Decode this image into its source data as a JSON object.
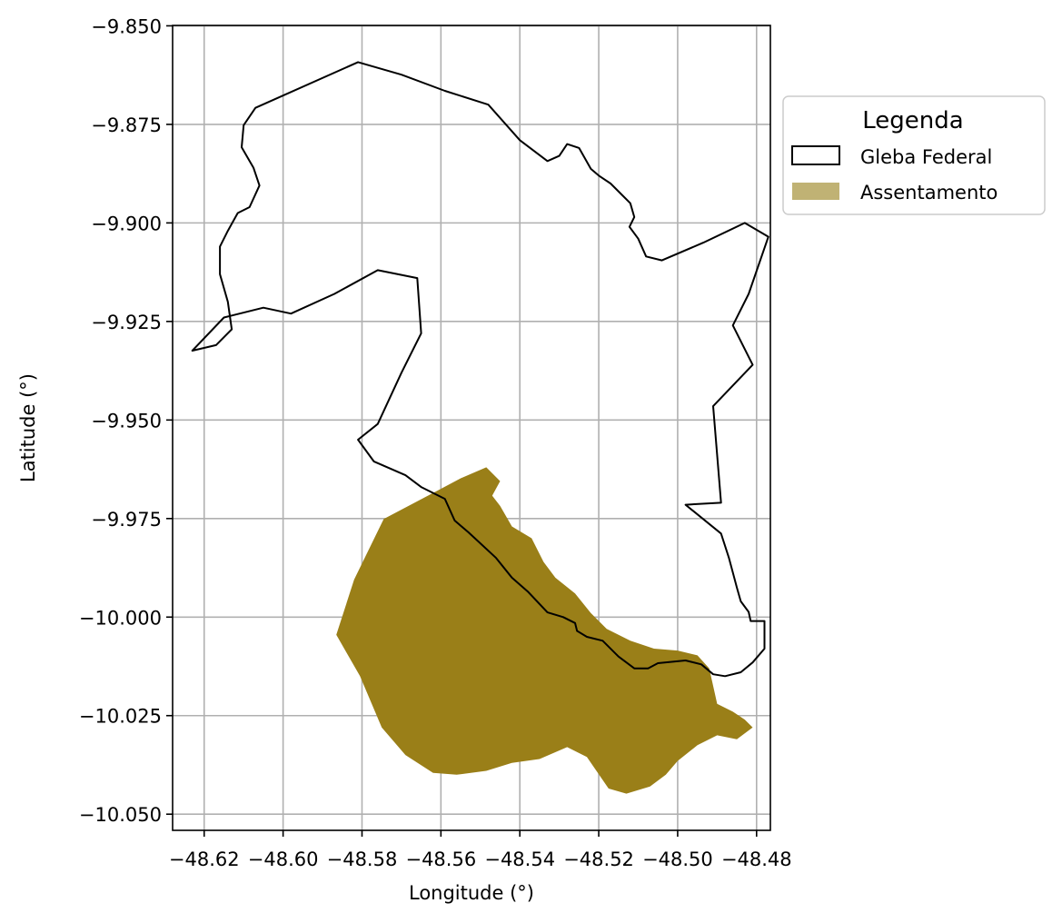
{
  "chart_data": {
    "type": "map",
    "xlabel": "Longitude (°)",
    "ylabel": "Latitude (°)",
    "xlim": [
      -48.628,
      -48.4765
    ],
    "ylim": [
      -10.0541,
      -9.8499
    ],
    "x_ticks": [
      -48.62,
      -48.6,
      -48.58,
      -48.56,
      -48.54,
      -48.52,
      -48.5,
      -48.48
    ],
    "x_tick_labels": [
      "−48.62",
      "−48.60",
      "−48.58",
      "−48.56",
      "−48.54",
      "−48.52",
      "−48.50",
      "−48.48"
    ],
    "y_ticks": [
      -9.85,
      -9.875,
      -9.9,
      -9.925,
      -9.95,
      -9.975,
      -10.0,
      -10.025,
      -10.05
    ],
    "y_tick_labels": [
      "−9.850",
      "−9.875",
      "−9.900",
      "−9.925",
      "−9.950",
      "−9.975",
      "−10.000",
      "−10.025",
      "−10.050"
    ],
    "grid": true,
    "legend": {
      "title": "Legenda",
      "placement": "outside-right-top",
      "entries": [
        {
          "label": "Gleba Federal",
          "style": "outline",
          "color": "#000000"
        },
        {
          "label": "Assentamento",
          "style": "fill",
          "color": "#c0b274"
        }
      ]
    },
    "layers": [
      {
        "name": "Gleba Federal",
        "style": "outline",
        "stroke": "#000000",
        "coordinates": [
          [
            -48.581,
            -9.8592
          ],
          [
            -48.57,
            -9.8624
          ],
          [
            -48.559,
            -9.8665
          ],
          [
            -48.548,
            -9.87
          ],
          [
            -48.54,
            -9.879
          ],
          [
            -48.533,
            -9.8843
          ],
          [
            -48.53,
            -9.883
          ],
          [
            -48.528,
            -9.88
          ],
          [
            -48.525,
            -9.881
          ],
          [
            -48.522,
            -9.8863
          ],
          [
            -48.52,
            -9.888
          ],
          [
            -48.517,
            -9.89
          ],
          [
            -48.514,
            -9.893
          ],
          [
            -48.512,
            -9.895
          ],
          [
            -48.511,
            -9.8985
          ],
          [
            -48.5122,
            -9.901
          ],
          [
            -48.51,
            -9.904
          ],
          [
            -48.508,
            -9.9085
          ],
          [
            -48.504,
            -9.9095
          ],
          [
            -48.4935,
            -9.905
          ],
          [
            -48.483,
            -9.9
          ],
          [
            -48.477,
            -9.9035
          ],
          [
            -48.482,
            -9.918
          ],
          [
            -48.486,
            -9.926
          ],
          [
            -48.481,
            -9.936
          ],
          [
            -48.491,
            -9.9465
          ],
          [
            -48.489,
            -9.971
          ],
          [
            -48.498,
            -9.9715
          ],
          [
            -48.489,
            -9.9788
          ],
          [
            -48.487,
            -9.985
          ],
          [
            -48.485,
            -9.9925
          ],
          [
            -48.484,
            -9.996
          ],
          [
            -48.482,
            -9.9987
          ],
          [
            -48.4815,
            -10.001
          ],
          [
            -48.478,
            -10.001
          ],
          [
            -48.478,
            -10.008
          ],
          [
            -48.481,
            -10.0115
          ],
          [
            -48.484,
            -10.014
          ],
          [
            -48.488,
            -10.015
          ],
          [
            -48.491,
            -10.0145
          ],
          [
            -48.494,
            -10.012
          ],
          [
            -48.498,
            -10.011
          ],
          [
            -48.505,
            -10.0117
          ],
          [
            -48.5075,
            -10.013
          ],
          [
            -48.511,
            -10.013
          ],
          [
            -48.515,
            -10.01
          ],
          [
            -48.519,
            -10.006
          ],
          [
            -48.523,
            -10.005
          ],
          [
            -48.5255,
            -10.0035
          ],
          [
            -48.526,
            -10.0015
          ],
          [
            -48.529,
            -10.0
          ],
          [
            -48.533,
            -9.9988
          ],
          [
            -48.538,
            -9.9935
          ],
          [
            -48.542,
            -9.99
          ],
          [
            -48.546,
            -9.985
          ],
          [
            -48.553,
            -9.9785
          ],
          [
            -48.5565,
            -9.9755
          ],
          [
            -48.559,
            -9.97
          ],
          [
            -48.565,
            -9.967
          ],
          [
            -48.569,
            -9.964
          ],
          [
            -48.577,
            -9.9605
          ],
          [
            -48.581,
            -9.955
          ],
          [
            -48.576,
            -9.951
          ],
          [
            -48.57,
            -9.938
          ],
          [
            -48.565,
            -9.928
          ],
          [
            -48.566,
            -9.914
          ],
          [
            -48.576,
            -9.912
          ],
          [
            -48.587,
            -9.918
          ],
          [
            -48.598,
            -9.923
          ],
          [
            -48.605,
            -9.9215
          ],
          [
            -48.615,
            -9.924
          ],
          [
            -48.623,
            -9.9324
          ],
          [
            -48.617,
            -9.931
          ],
          [
            -48.613,
            -9.927
          ],
          [
            -48.614,
            -9.92
          ],
          [
            -48.616,
            -9.913
          ],
          [
            -48.616,
            -9.906
          ],
          [
            -48.614,
            -9.902
          ],
          [
            -48.6115,
            -9.8975
          ],
          [
            -48.6085,
            -9.896
          ],
          [
            -48.606,
            -9.8905
          ],
          [
            -48.6075,
            -9.886
          ],
          [
            -48.6105,
            -9.8808
          ],
          [
            -48.61,
            -9.8752
          ],
          [
            -48.607,
            -9.8708
          ],
          [
            -48.581,
            -9.8592
          ]
        ]
      },
      {
        "name": "Assentamento",
        "style": "fill",
        "fill": "#9a7f18",
        "coordinates": [
          [
            -48.5865,
            -10.0045
          ],
          [
            -48.582,
            -9.9905
          ],
          [
            -48.5745,
            -9.9751
          ],
          [
            -48.561,
            -9.968
          ],
          [
            -48.555,
            -9.9648
          ],
          [
            -48.5485,
            -9.962
          ],
          [
            -48.545,
            -9.9655
          ],
          [
            -48.547,
            -9.9692
          ],
          [
            -48.545,
            -9.9718
          ],
          [
            -48.542,
            -9.977
          ],
          [
            -48.537,
            -9.98
          ],
          [
            -48.534,
            -9.986
          ],
          [
            -48.531,
            -9.99
          ],
          [
            -48.526,
            -9.994
          ],
          [
            -48.522,
            -9.999
          ],
          [
            -48.518,
            -10.003
          ],
          [
            -48.512,
            -10.006
          ],
          [
            -48.506,
            -10.008
          ],
          [
            -48.5,
            -10.0085
          ],
          [
            -48.495,
            -10.0097
          ],
          [
            -48.492,
            -10.013
          ],
          [
            -48.49,
            -10.022
          ],
          [
            -48.486,
            -10.024
          ],
          [
            -48.483,
            -10.026
          ],
          [
            -48.481,
            -10.028
          ],
          [
            -48.485,
            -10.031
          ],
          [
            -48.49,
            -10.03
          ],
          [
            -48.495,
            -10.0325
          ],
          [
            -48.5,
            -10.0365
          ],
          [
            -48.503,
            -10.04
          ],
          [
            -48.507,
            -10.043
          ],
          [
            -48.513,
            -10.0448
          ],
          [
            -48.5175,
            -10.0435
          ],
          [
            -48.523,
            -10.0355
          ],
          [
            -48.528,
            -10.033
          ],
          [
            -48.535,
            -10.036
          ],
          [
            -48.542,
            -10.037
          ],
          [
            -48.5485,
            -10.039
          ],
          [
            -48.556,
            -10.04
          ],
          [
            -48.562,
            -10.0395
          ],
          [
            -48.569,
            -10.035
          ],
          [
            -48.575,
            -10.028
          ],
          [
            -48.5805,
            -10.015
          ],
          [
            -48.5865,
            -10.0045
          ]
        ]
      }
    ]
  }
}
